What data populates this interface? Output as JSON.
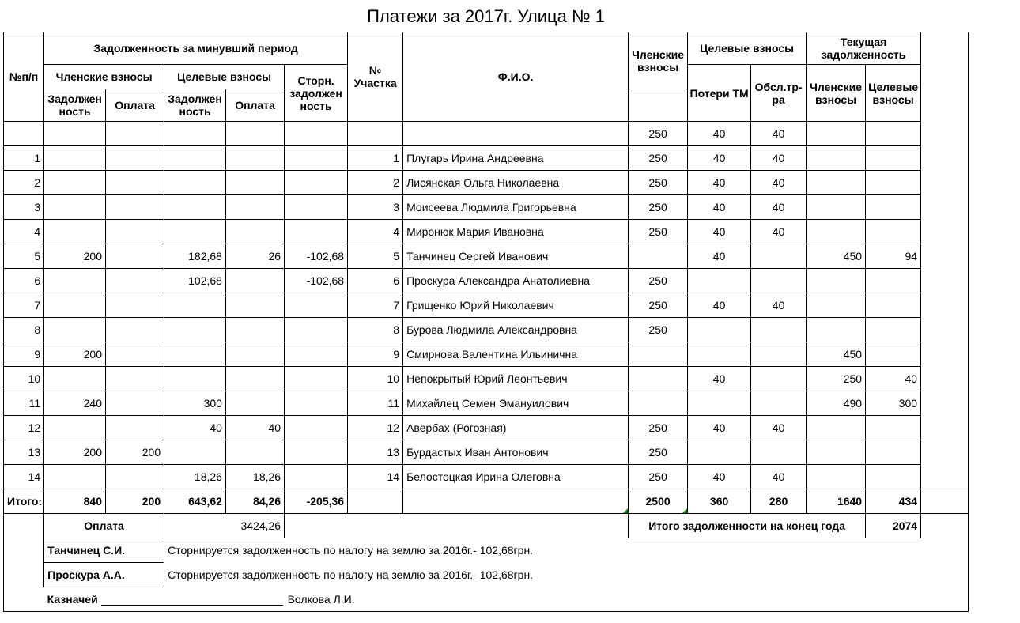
{
  "title": "Платежи за 2017г. Улица № 1",
  "headers": {
    "idx": "№п/п",
    "past_group": "Задолженность за минувший период",
    "past_member": "Членские взносы",
    "past_target": "Целевые взносы",
    "debt": "Задолжен ность",
    "pay": "Оплата",
    "storno": "Сторн. задолжен ность",
    "plot": "№ Участка",
    "fio": "Ф.И.О.",
    "member": "Членские взносы",
    "target_group": "Целевые взносы",
    "loss": "Потери ТМ",
    "serv": "Обсл.тр-ра",
    "cur_group": "Текущая задолженность",
    "cur_member": "Членские взносы",
    "cur_target": "Целевые взносы"
  },
  "rates": {
    "member": "250",
    "loss": "40",
    "serv": "40"
  },
  "rows": [
    {
      "n": "1",
      "h1": "",
      "h2": "",
      "h3": "",
      "h4": "",
      "h5": "",
      "plot": "1",
      "name": "Плугарь  Ирина Андреевна",
      "m1": "250",
      "m2": "40",
      "m3": "40",
      "d1": "",
      "d2": ""
    },
    {
      "n": "2",
      "h1": "",
      "h2": "",
      "h3": "",
      "h4": "",
      "h5": "",
      "plot": "2",
      "name": "Лисянская Ольга Николаевна",
      "m1": "250",
      "m2": "40",
      "m3": "40",
      "d1": "",
      "d2": ""
    },
    {
      "n": "3",
      "h1": "",
      "h2": "",
      "h3": "",
      "h4": "",
      "h5": "",
      "plot": "3",
      "name": "Моисеева Людмила Григорьевна",
      "m1": "250",
      "m2": "40",
      "m3": "40",
      "d1": "",
      "d2": ""
    },
    {
      "n": "4",
      "h1": "",
      "h2": "",
      "h3": "",
      "h4": "",
      "h5": "",
      "plot": "4",
      "name": "Миронюк Мария Ивановна",
      "m1": "250",
      "m2": "40",
      "m3": "40",
      "d1": "",
      "d2": ""
    },
    {
      "n": "5",
      "h1": "200",
      "h2": "",
      "h3": "182,68",
      "h4": "26",
      "h5": "-102,68",
      "plot": "5",
      "name": "Танчинец Сергей Иванович",
      "m1": "",
      "m2": "40",
      "m3": "",
      "d1": "450",
      "d2": "94"
    },
    {
      "n": "6",
      "h1": "",
      "h2": "",
      "h3": "102,68",
      "h4": "",
      "h5": "-102,68",
      "plot": "6",
      "name": "Проскура Александра Анатолиевна",
      "m1": "250",
      "m2": "",
      "m3": "",
      "d1": "",
      "d2": ""
    },
    {
      "n": "7",
      "h1": "",
      "h2": "",
      "h3": "",
      "h4": "",
      "h5": "",
      "plot": "7",
      "name": "Грищенко Юрий Николаевич",
      "m1": "250",
      "m2": "40",
      "m3": "40",
      "d1": "",
      "d2": ""
    },
    {
      "n": "8",
      "h1": "",
      "h2": "",
      "h3": "",
      "h4": "",
      "h5": "",
      "plot": "8",
      "name": "Бурова Людмила Александровна",
      "m1": "250",
      "m2": "",
      "m3": "",
      "d1": "",
      "d2": ""
    },
    {
      "n": "9",
      "h1": "200",
      "h2": "",
      "h3": "",
      "h4": "",
      "h5": "",
      "plot": "9",
      "name": "Смирнова Валентина Ильинична",
      "m1": "",
      "m2": "",
      "m3": "",
      "d1": "450",
      "d2": ""
    },
    {
      "n": "10",
      "h1": "",
      "h2": "",
      "h3": "",
      "h4": "",
      "h5": "",
      "plot": "10",
      "name": "Непокрытый Юрий Леонтьевич",
      "m1": "",
      "m2": "40",
      "m3": "",
      "d1": "250",
      "d2": "40"
    },
    {
      "n": "11",
      "h1": "240",
      "h2": "",
      "h3": "300",
      "h4": "",
      "h5": "",
      "plot": "11",
      "name": "Михайлец Семен Эмануилович",
      "m1": "",
      "m2": "",
      "m3": "",
      "d1": "490",
      "d2": "300"
    },
    {
      "n": "12",
      "h1": "",
      "h2": "",
      "h3": "40",
      "h4": "40",
      "h5": "",
      "plot": "12",
      "name": "Авербах (Рогозная)",
      "m1": "250",
      "m2": "40",
      "m3": "40",
      "d1": "",
      "d2": ""
    },
    {
      "n": "13",
      "h1": "200",
      "h2": "200",
      "h3": "",
      "h4": "",
      "h5": "",
      "plot": "13",
      "name": "Бурдастых Иван Антонович",
      "m1": "250",
      "m2": "",
      "m3": "",
      "d1": "",
      "d2": ""
    },
    {
      "n": "14",
      "h1": "",
      "h2": "",
      "h3": "18,26",
      "h4": "18,26",
      "h5": "",
      "plot": "14",
      "name": "Белостоцкая Ирина Олеговна",
      "m1": "250",
      "m2": "40",
      "m3": "40",
      "d1": "",
      "d2": ""
    }
  ],
  "totals": {
    "label": "Итого:",
    "h1": "840",
    "h2": "200",
    "h3": "643,62",
    "h4": "84,26",
    "h5": "-205,36",
    "m1": "2500",
    "m2": "360",
    "m3": "280",
    "d1": "1640",
    "d2": "434"
  },
  "oplata": {
    "label": "Оплата",
    "value": "3424,26"
  },
  "year_debt": {
    "label": "Итого задолженности на конец года",
    "value": "2074"
  },
  "notes": [
    {
      "who": "Танчинец С.И.",
      "text": "Сторнируется задолженность по налогу на землю за 2016г.- 102,68грн."
    },
    {
      "who": "Проскура А.А.",
      "text": "Сторнируется задолженность по налогу на землю за 2016г.- 102,68грн."
    }
  ],
  "treasurer": {
    "label": "Казначей",
    "name": "Волкова Л.И."
  }
}
